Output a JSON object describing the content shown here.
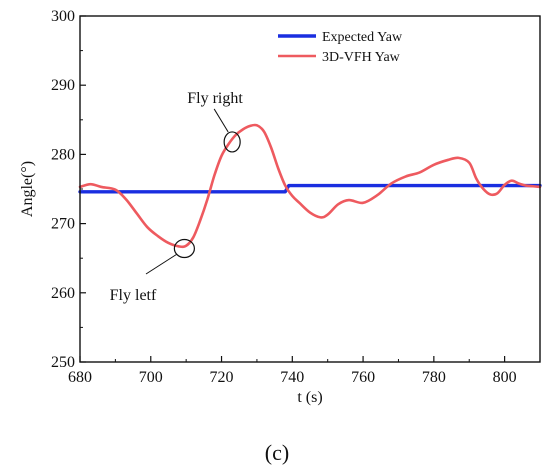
{
  "chart_data": {
    "type": "line",
    "title": "",
    "xlabel": "t (s)",
    "ylabel": "Angle(°)",
    "xlim": [
      680,
      810
    ],
    "ylim": [
      250,
      300
    ],
    "x_ticks": [
      680,
      700,
      720,
      740,
      760,
      780,
      800
    ],
    "y_ticks": [
      250,
      260,
      270,
      280,
      290,
      300
    ],
    "grid": false,
    "legend_position": "top-right",
    "panel_label": "(c)",
    "colors": {
      "expected": "#1a2ee0",
      "vfh": "#ee5a5f",
      "axis": "#111111"
    },
    "series": [
      {
        "name": "Expected Yaw",
        "color": "#1a2ee0",
        "x": [
          680,
          738,
          739,
          810
        ],
        "y": [
          274.6,
          274.6,
          275.5,
          275.5
        ]
      },
      {
        "name": "3D-VFH Yaw",
        "color": "#ee5a5f",
        "x": [
          680,
          683,
          686,
          690,
          693,
          696,
          699,
          702,
          705,
          708,
          710,
          712,
          714,
          716,
          718,
          720,
          722,
          724,
          726,
          728,
          730,
          732,
          734,
          736,
          738,
          740,
          742,
          745,
          748,
          750,
          753,
          756,
          760,
          764,
          768,
          772,
          776,
          780,
          784,
          787,
          790,
          792,
          794,
          796,
          798,
          800,
          802,
          804,
          806,
          808,
          810
        ],
        "y": [
          275.3,
          275.7,
          275.3,
          274.9,
          273.5,
          271.5,
          269.5,
          268.2,
          267.2,
          266.7,
          266.8,
          268.0,
          270.5,
          273.5,
          277.0,
          279.8,
          281.5,
          282.8,
          283.6,
          284.1,
          284.2,
          283.3,
          281.0,
          278.0,
          275.5,
          274.0,
          273.0,
          271.6,
          270.9,
          271.3,
          272.8,
          273.4,
          273.0,
          274.1,
          275.8,
          276.8,
          277.4,
          278.5,
          279.2,
          279.5,
          278.8,
          276.5,
          275.0,
          274.2,
          274.4,
          275.6,
          276.2,
          275.8,
          275.5,
          275.4,
          275.3
        ]
      }
    ],
    "annotations": [
      {
        "text": "Fly right",
        "x": 723,
        "y": 281.8
      },
      {
        "text": "Fly letf",
        "x": 709.5,
        "y": 266.4
      }
    ]
  }
}
